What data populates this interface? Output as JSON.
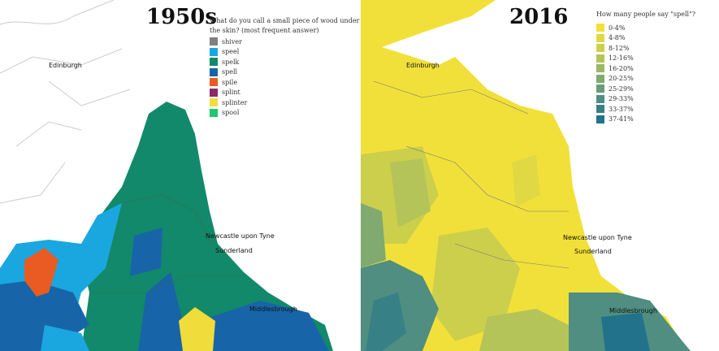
{
  "left_map": {
    "title": "1950s",
    "question": "What do you call a small piece of wood under the skin? (most frequent answer)",
    "legend": [
      {
        "label": "shiver",
        "color": "#808080"
      },
      {
        "label": "speel",
        "color": "#1aa7df"
      },
      {
        "label": "spelk",
        "color": "#12896a"
      },
      {
        "label": "spell",
        "color": "#1765a8"
      },
      {
        "label": "spile",
        "color": "#ea5b22"
      },
      {
        "label": "splint",
        "color": "#8b2a6b"
      },
      {
        "label": "splinter",
        "color": "#f0dc3a"
      },
      {
        "label": "spool",
        "color": "#1ec873"
      }
    ],
    "places": [
      "Edinburgh",
      "Newcastle upon Tyne",
      "Sunderland",
      "Middlesbrough"
    ]
  },
  "right_map": {
    "title": "2016",
    "question": "How many people say \"spell\"?",
    "legend": [
      {
        "label": "0-4%",
        "color": "#f2e03a"
      },
      {
        "label": "4-8%",
        "color": "#e1d943"
      },
      {
        "label": "8-12%",
        "color": "#cccf4c"
      },
      {
        "label": "12-16%",
        "color": "#b5c458"
      },
      {
        "label": "16-20%",
        "color": "#9bb866"
      },
      {
        "label": "20-25%",
        "color": "#80aa70"
      },
      {
        "label": "25-29%",
        "color": "#679c78"
      },
      {
        "label": "29-33%",
        "color": "#4f8e80"
      },
      {
        "label": "33-37%",
        "color": "#378086"
      },
      {
        "label": "37-41%",
        "color": "#22728c"
      }
    ],
    "places": [
      "Edinburgh",
      "Newcastle upon Tyne",
      "Sunderland",
      "Middlesbrough"
    ]
  }
}
